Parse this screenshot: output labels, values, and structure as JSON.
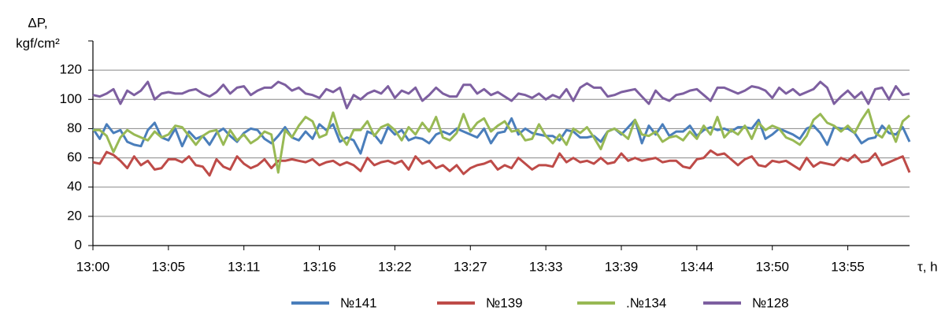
{
  "chart_data": {
    "type": "line",
    "y_label": [
      "ΔP,",
      "kgf/cm²"
    ],
    "x_label": "τ,  h",
    "categories": [
      "13:00",
      null,
      null,
      null,
      null,
      null,
      null,
      null,
      null,
      null,
      null,
      "13:05",
      null,
      null,
      null,
      null,
      null,
      null,
      null,
      null,
      null,
      null,
      "13:11",
      null,
      null,
      null,
      null,
      null,
      null,
      null,
      null,
      null,
      null,
      "13:16",
      null,
      null,
      null,
      null,
      null,
      null,
      null,
      null,
      null,
      null,
      "13:22",
      null,
      null,
      null,
      null,
      null,
      null,
      null,
      null,
      null,
      null,
      "13:27",
      null,
      null,
      null,
      null,
      null,
      null,
      null,
      null,
      null,
      null,
      "13:33",
      null,
      null,
      null,
      null,
      null,
      null,
      null,
      null,
      null,
      null,
      "13:39",
      null,
      null,
      null,
      null,
      null,
      null,
      null,
      null,
      null,
      null,
      "13:44",
      null,
      null,
      null,
      null,
      null,
      null,
      null,
      null,
      null,
      null,
      "13:50",
      null,
      null,
      null,
      null,
      null,
      null,
      null,
      null,
      null,
      null,
      "13:55",
      null,
      null,
      null,
      null,
      null,
      null,
      null,
      null,
      null
    ],
    "ylim": [
      0,
      140
    ],
    "yticks": [
      0,
      20,
      40,
      60,
      80,
      100,
      120
    ],
    "grid": true,
    "series": [
      {
        "name": "№141",
        "color": "#4a7ebb",
        "values": [
          80,
          73,
          83,
          77,
          79,
          71,
          69,
          68,
          79,
          84,
          74,
          72,
          80,
          68,
          78,
          73,
          75,
          69,
          77,
          80,
          75,
          71,
          77,
          80,
          79,
          73,
          70,
          75,
          81,
          74,
          72,
          78,
          73,
          83,
          79,
          83,
          71,
          74,
          72,
          63,
          78,
          76,
          70,
          81,
          76,
          79,
          72,
          74,
          73,
          70,
          76,
          78,
          76,
          80,
          78,
          76,
          74,
          80,
          70,
          77,
          78,
          87,
          76,
          80,
          77,
          76,
          75,
          75,
          72,
          79,
          78,
          74,
          74,
          75,
          71,
          78,
          80,
          76,
          81,
          86,
          70,
          82,
          76,
          83,
          75,
          78,
          78,
          82,
          75,
          79,
          81,
          79,
          80,
          78,
          81,
          81,
          80,
          86,
          73,
          76,
          80,
          78,
          76,
          73,
          80,
          82,
          77,
          69,
          81,
          80,
          80,
          77,
          70,
          73,
          74,
          82,
          77,
          76,
          81,
          71
        ]
      },
      {
        "name": "№139",
        "color": "#be4b48",
        "values": [
          57,
          56,
          64,
          62,
          58,
          53,
          61,
          55,
          58,
          52,
          53,
          59,
          59,
          57,
          61,
          55,
          54,
          48,
          59,
          54,
          52,
          61,
          56,
          53,
          55,
          59,
          53,
          58,
          58,
          59,
          58,
          57,
          59,
          55,
          57,
          58,
          55,
          57,
          55,
          51,
          60,
          55,
          57,
          58,
          56,
          58,
          52,
          61,
          56,
          58,
          53,
          55,
          51,
          55,
          49,
          53,
          55,
          56,
          58,
          52,
          55,
          53,
          60,
          56,
          52,
          55,
          55,
          54,
          63,
          57,
          60,
          57,
          58,
          56,
          60,
          56,
          57,
          63,
          58,
          60,
          58,
          59,
          60,
          57,
          58,
          58,
          54,
          53,
          59,
          60,
          65,
          62,
          63,
          59,
          55,
          59,
          61,
          55,
          54,
          58,
          57,
          58,
          55,
          52,
          60,
          54,
          57,
          56,
          55,
          60,
          58,
          62,
          57,
          58,
          63,
          55,
          57,
          59,
          61,
          50
        ]
      },
      {
        "name": ".№134",
        "color": "#98b954",
        "values": [
          79,
          79,
          75,
          64,
          74,
          79,
          76,
          74,
          72,
          78,
          74,
          76,
          82,
          81,
          75,
          69,
          75,
          78,
          79,
          69,
          79,
          72,
          76,
          70,
          73,
          78,
          76,
          50,
          79,
          74,
          82,
          88,
          85,
          74,
          76,
          91,
          76,
          69,
          79,
          79,
          85,
          75,
          81,
          83,
          79,
          72,
          81,
          76,
          84,
          78,
          88,
          74,
          72,
          77,
          90,
          78,
          84,
          87,
          78,
          82,
          85,
          78,
          79,
          72,
          73,
          83,
          75,
          70,
          76,
          69,
          80,
          77,
          81,
          74,
          66,
          78,
          80,
          77,
          73,
          86,
          76,
          75,
          78,
          71,
          74,
          75,
          72,
          78,
          73,
          82,
          76,
          88,
          74,
          79,
          76,
          82,
          73,
          84,
          79,
          82,
          80,
          74,
          72,
          69,
          75,
          86,
          90,
          84,
          82,
          78,
          82,
          77,
          86,
          93,
          77,
          74,
          82,
          71,
          85,
          89
        ]
      },
      {
        "name": "№128",
        "color": "#7d5fa0",
        "values": [
          103,
          102,
          104,
          107,
          97,
          106,
          103,
          106,
          112,
          100,
          104,
          105,
          104,
          104,
          106,
          107,
          104,
          102,
          105,
          110,
          104,
          108,
          109,
          103,
          106,
          108,
          108,
          112,
          110,
          106,
          108,
          104,
          103,
          101,
          107,
          105,
          108,
          94,
          103,
          100,
          104,
          106,
          104,
          109,
          101,
          106,
          104,
          108,
          99,
          103,
          108,
          104,
          102,
          102,
          110,
          110,
          104,
          107,
          103,
          105,
          102,
          99,
          104,
          103,
          101,
          104,
          100,
          103,
          101,
          107,
          99,
          108,
          111,
          108,
          108,
          102,
          103,
          105,
          106,
          107,
          102,
          97,
          106,
          101,
          99,
          103,
          104,
          106,
          107,
          103,
          99,
          108,
          108,
          106,
          104,
          106,
          109,
          108,
          106,
          101,
          108,
          104,
          107,
          103,
          105,
          107,
          112,
          108,
          97,
          102,
          106,
          101,
          105,
          97,
          107,
          108,
          100,
          109,
          103,
          104
        ]
      }
    ]
  }
}
